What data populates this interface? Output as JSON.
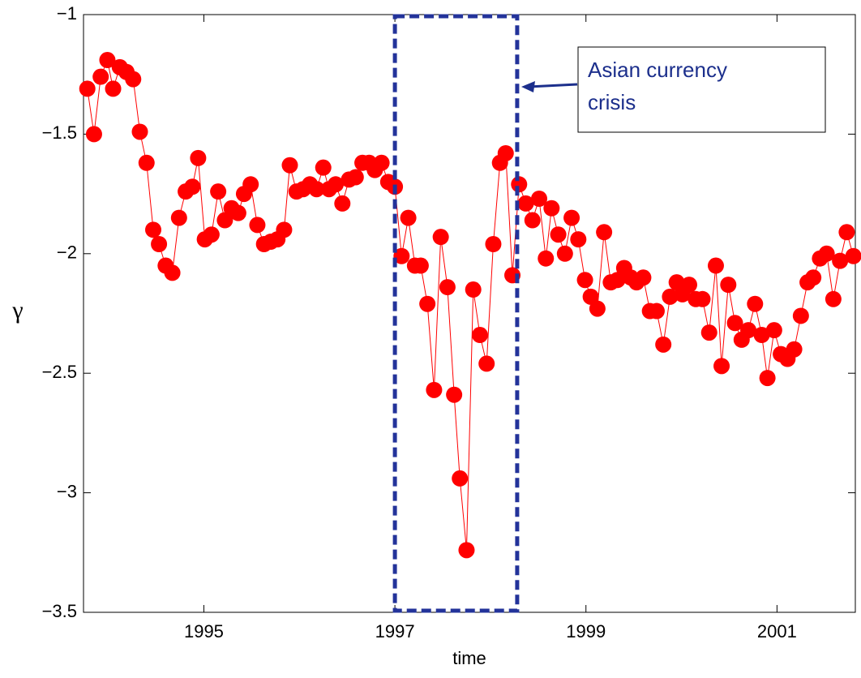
{
  "chart_data": {
    "type": "line",
    "xlabel": "time",
    "ylabel": "γ",
    "annotation": {
      "lines": [
        "Asian currency",
        "crisis"
      ],
      "color": "#1c2f8c"
    },
    "highlight_xlim": [
      1997.0,
      1998.28
    ],
    "highlight_color": "#23339a",
    "x": [
      1993.78,
      1993.85,
      1993.92,
      1993.99,
      1994.05,
      1994.12,
      1994.19,
      1994.26,
      1994.33,
      1994.4,
      1994.47,
      1994.53,
      1994.6,
      1994.67,
      1994.74,
      1994.81,
      1994.88,
      1994.94,
      1995.01,
      1995.08,
      1995.15,
      1995.22,
      1995.29,
      1995.36,
      1995.42,
      1995.49,
      1995.56,
      1995.63,
      1995.7,
      1995.77,
      1995.84,
      1995.9,
      1995.97,
      1996.04,
      1996.11,
      1996.18,
      1996.25,
      1996.31,
      1996.38,
      1996.45,
      1996.52,
      1996.59,
      1996.66,
      1996.73,
      1996.79,
      1996.86,
      1996.93,
      1997.0,
      1997.07,
      1997.14,
      1997.21,
      1997.27,
      1997.34,
      1997.41,
      1997.48,
      1997.55,
      1997.62,
      1997.68,
      1997.75,
      1997.82,
      1997.89,
      1997.96,
      1998.03,
      1998.1,
      1998.16,
      1998.23,
      1998.3,
      1998.37,
      1998.44,
      1998.51,
      1998.58,
      1998.64,
      1998.71,
      1998.78,
      1998.85,
      1998.92,
      1998.99,
      1999.05,
      1999.12,
      1999.19,
      1999.26,
      1999.33,
      1999.4,
      1999.47,
      1999.53,
      1999.6,
      1999.67,
      1999.74,
      1999.81,
      1999.88,
      1999.95,
      2000.01,
      2000.08,
      2000.15,
      2000.22,
      2000.29,
      2000.36,
      2000.42,
      2000.49,
      2000.56,
      2000.63,
      2000.7,
      2000.77,
      2000.84,
      2000.9,
      2000.97,
      2001.04,
      2001.11,
      2001.18,
      2001.25,
      2001.32,
      2001.38,
      2001.45,
      2001.52,
      2001.59,
      2001.66,
      2001.73,
      2001.8
    ],
    "series": [
      {
        "name": "gamma",
        "color": "#ff0000",
        "values": [
          -1.31,
          -1.5,
          -1.26,
          -1.19,
          -1.31,
          -1.22,
          -1.24,
          -1.27,
          -1.49,
          -1.62,
          -1.9,
          -1.96,
          -2.05,
          -2.08,
          -1.85,
          -1.74,
          -1.72,
          -1.6,
          -1.94,
          -1.92,
          -1.74,
          -1.86,
          -1.81,
          -1.83,
          -1.75,
          -1.71,
          -1.88,
          -1.96,
          -1.95,
          -1.94,
          -1.9,
          -1.63,
          -1.74,
          -1.73,
          -1.71,
          -1.73,
          -1.64,
          -1.73,
          -1.71,
          -1.79,
          -1.69,
          -1.68,
          -1.62,
          -1.62,
          -1.65,
          -1.62,
          -1.7,
          -1.72,
          -2.01,
          -1.85,
          -2.05,
          -2.05,
          -2.21,
          -2.57,
          -1.93,
          -2.14,
          -2.59,
          -2.94,
          -3.24,
          -2.15,
          -2.34,
          -2.46,
          -1.96,
          -1.62,
          -1.58,
          -2.09,
          -1.71,
          -1.79,
          -1.86,
          -1.77,
          -2.02,
          -1.81,
          -1.92,
          -2.0,
          -1.85,
          -1.94,
          -2.11,
          -2.18,
          -2.23,
          -1.91,
          -2.12,
          -2.11,
          -2.06,
          -2.1,
          -2.12,
          -2.1,
          -2.24,
          -2.24,
          -2.38,
          -2.18,
          -2.12,
          -2.17,
          -2.13,
          -2.19,
          -2.19,
          -2.33,
          -2.05,
          -2.47,
          -2.13,
          -2.29,
          -2.36,
          -2.32,
          -2.21,
          -2.34,
          -2.52,
          -2.32,
          -2.42,
          -2.44,
          -2.4,
          -2.26,
          -2.12,
          -2.1,
          -2.02,
          -2.0,
          -2.19,
          -2.03,
          -1.91,
          -2.01
        ]
      }
    ],
    "xlim": [
      1993.74,
      2001.82
    ],
    "xticks": [
      1995,
      1997,
      1999,
      2001
    ],
    "ylim": [
      -3.5,
      -1
    ],
    "yticks": [
      {
        "value": -3.5,
        "label": "−3.5"
      },
      {
        "value": -3,
        "label": "−3"
      },
      {
        "value": -2.5,
        "label": "−2.5"
      },
      {
        "value": -2,
        "label": "−2"
      },
      {
        "value": -1.5,
        "label": "−1.5"
      },
      {
        "value": -1,
        "label": "−1"
      }
    ],
    "grid": false
  }
}
